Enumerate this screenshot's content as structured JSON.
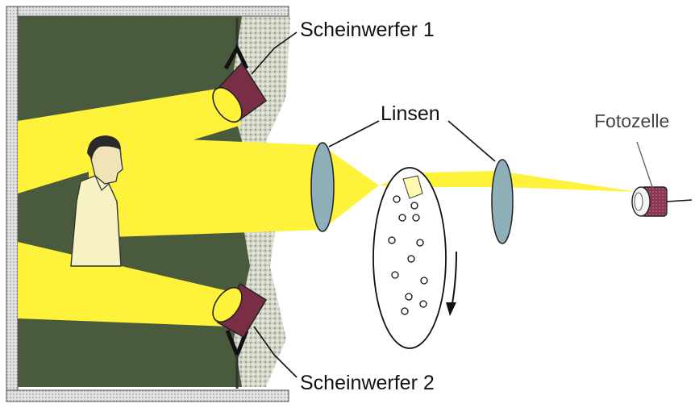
{
  "labels": {
    "spotlight_1": "Scheinwerfer 1",
    "spotlight_2": "Scheinwerfer 2",
    "lenses": "Linsen",
    "photocell": "Fotozelle"
  },
  "colors": {
    "studio_wall": "#4a5a3c",
    "light_beam": "#fff23a",
    "lens": "#8fb0b8",
    "spotlight_body": "#7a2e45",
    "photocell_body": "#8a3550",
    "frame": "#cfcfcf",
    "disc_outline": "#111111"
  },
  "nipkow_disc": {
    "rotation": "clockwise",
    "hole_count": 12
  }
}
